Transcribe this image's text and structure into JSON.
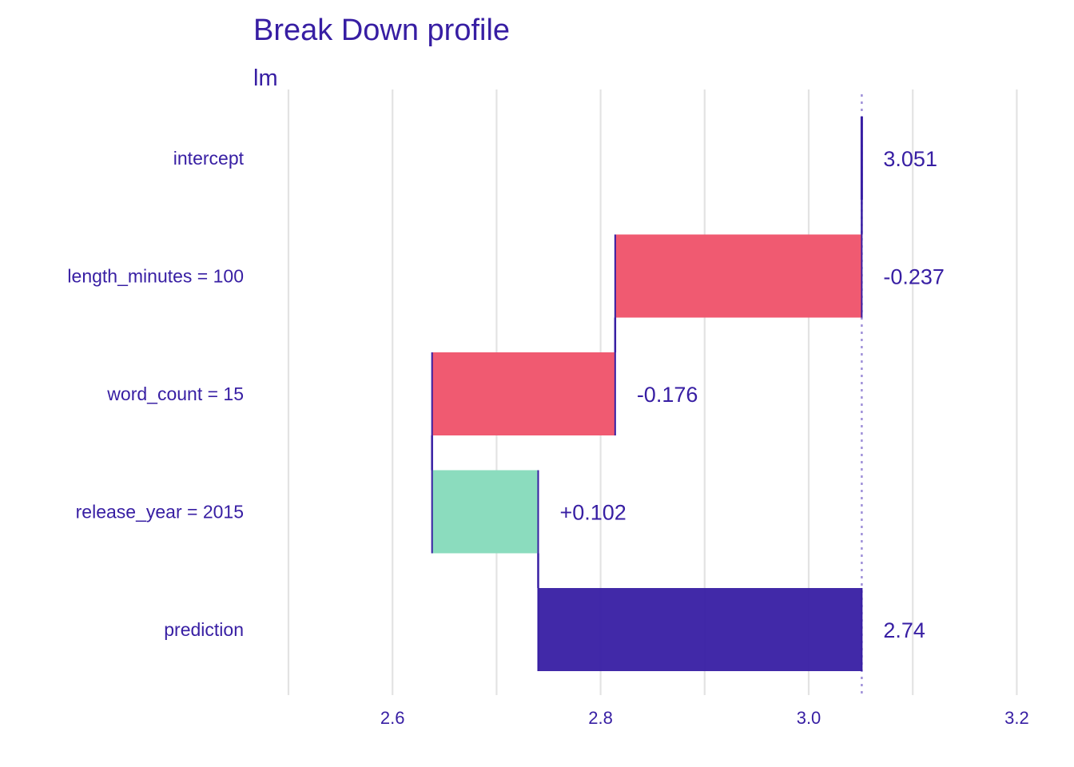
{
  "chart_data": {
    "type": "bar",
    "subtype": "waterfall",
    "title": "Break Down profile",
    "subtitle": "lm",
    "xlim": [
      2.45,
      3.21
    ],
    "x_ticks": [
      {
        "value": 2.6,
        "label": "2.6"
      },
      {
        "value": 2.8,
        "label": "2.8"
      },
      {
        "value": 3.0,
        "label": "3.0"
      },
      {
        "value": 3.2,
        "label": "3.2"
      }
    ],
    "grid_values": [
      2.5,
      2.6,
      2.7,
      2.8,
      2.9,
      3.0,
      3.1,
      3.2
    ],
    "grid": true,
    "baseline": 3.051,
    "bars": [
      {
        "category": "intercept",
        "start": 3.051,
        "end": 3.051,
        "label": "3.051",
        "kind": "intercept"
      },
      {
        "category": "length_minutes = 100",
        "start": 3.051,
        "end": 2.814,
        "label": "-0.237",
        "kind": "negative"
      },
      {
        "category": "word_count = 15",
        "start": 2.814,
        "end": 2.638,
        "label": "-0.176",
        "kind": "negative"
      },
      {
        "category": "release_year = 2015",
        "start": 2.638,
        "end": 2.74,
        "label": "+0.102",
        "kind": "positive"
      },
      {
        "category": "prediction",
        "start": 3.051,
        "end": 2.74,
        "label": "2.74",
        "kind": "prediction"
      }
    ],
    "colors": {
      "negative": "#f05a71",
      "positive": "#8bdcbe",
      "prediction": "#371ea3",
      "connector": "#371ea3",
      "baseline": "#9e8fd8",
      "text": "#371ea3",
      "grid": "#e3e3e3"
    }
  }
}
